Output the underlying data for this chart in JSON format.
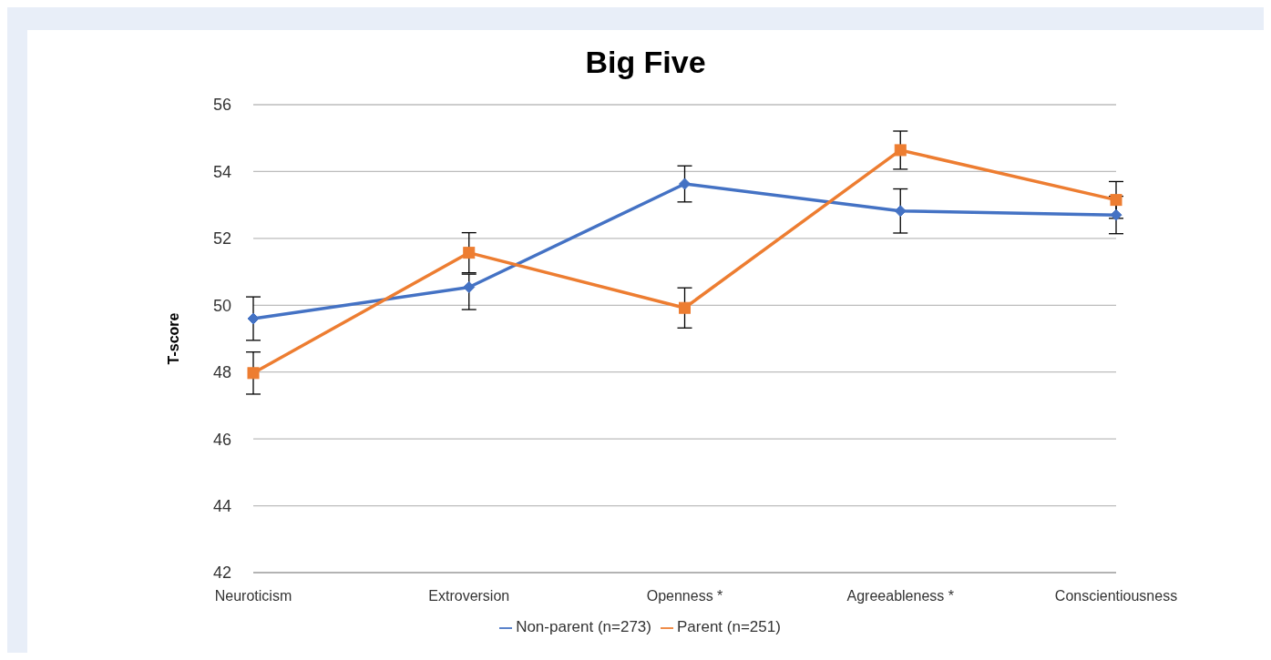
{
  "chart_data": {
    "type": "line",
    "title": "Big Five",
    "ylabel": "T-score",
    "categories": [
      "Neuroticism",
      "Extroversion",
      "Openness *",
      "Agreeableness *",
      "Conscientiousness"
    ],
    "series": [
      {
        "name": "Non-parent (n=273)",
        "color": "#4472c4",
        "marker": "diamond",
        "values": [
          49.6,
          50.54,
          53.63,
          52.82,
          52.7
        ],
        "errors": [
          0.65,
          [
            49.87,
            50.93
          ],
          0.54,
          0.66,
          0.56
        ]
      },
      {
        "name": "Parent (n=251)",
        "color": "#ed7d31",
        "marker": "square",
        "values": [
          47.97,
          51.57,
          49.92,
          54.64,
          53.15
        ],
        "errors": [
          0.63,
          0.6,
          0.6,
          0.57,
          0.55
        ]
      }
    ],
    "ylim": [
      42,
      56
    ],
    "yticks": [
      42,
      44,
      46,
      48,
      50,
      52,
      54,
      56
    ],
    "grid": "y",
    "legend": "bottom",
    "line_style": "solid"
  }
}
